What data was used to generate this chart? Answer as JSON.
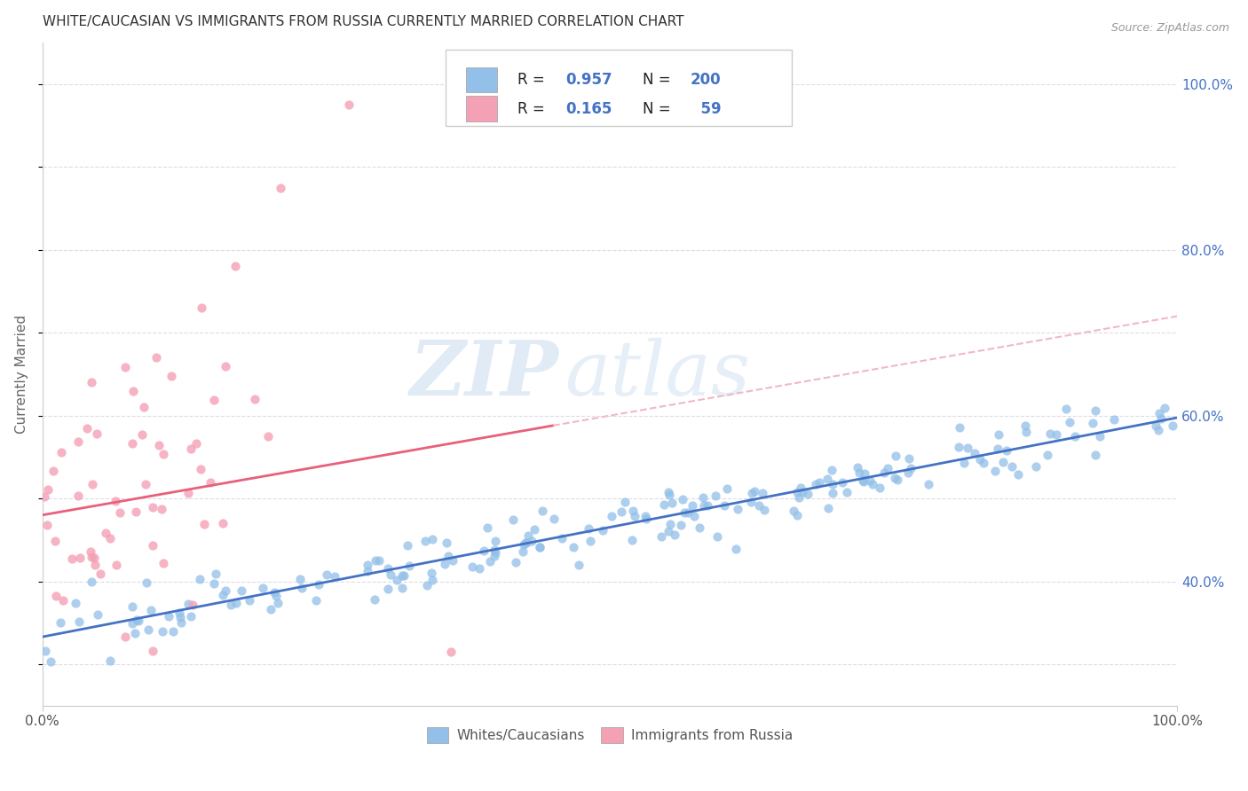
{
  "title": "WHITE/CAUCASIAN VS IMMIGRANTS FROM RUSSIA CURRENTLY MARRIED CORRELATION CHART",
  "source": "Source: ZipAtlas.com",
  "ylabel": "Currently Married",
  "xlim": [
    0,
    1
  ],
  "ylim": [
    0.25,
    1.05
  ],
  "blue_R": 0.957,
  "blue_N": 200,
  "pink_R": 0.165,
  "pink_N": 59,
  "blue_color": "#92C0E8",
  "pink_color": "#F4A0B5",
  "blue_line_color": "#4472C4",
  "pink_line_color": "#E8607A",
  "pink_dash_color": "#F0B8C8",
  "watermark_zip": "ZIP",
  "watermark_atlas": "atlas",
  "legend_label_blue": "Whites/Caucasians",
  "legend_label_pink": "Immigrants from Russia",
  "grid_color": "#DCDCE8",
  "right_tick_color": "#4472C4",
  "yticks": [
    0.4,
    0.6,
    0.8,
    1.0
  ],
  "ytick_labels": [
    "40.0%",
    "60.0%",
    "80.0%",
    "100.0%"
  ]
}
